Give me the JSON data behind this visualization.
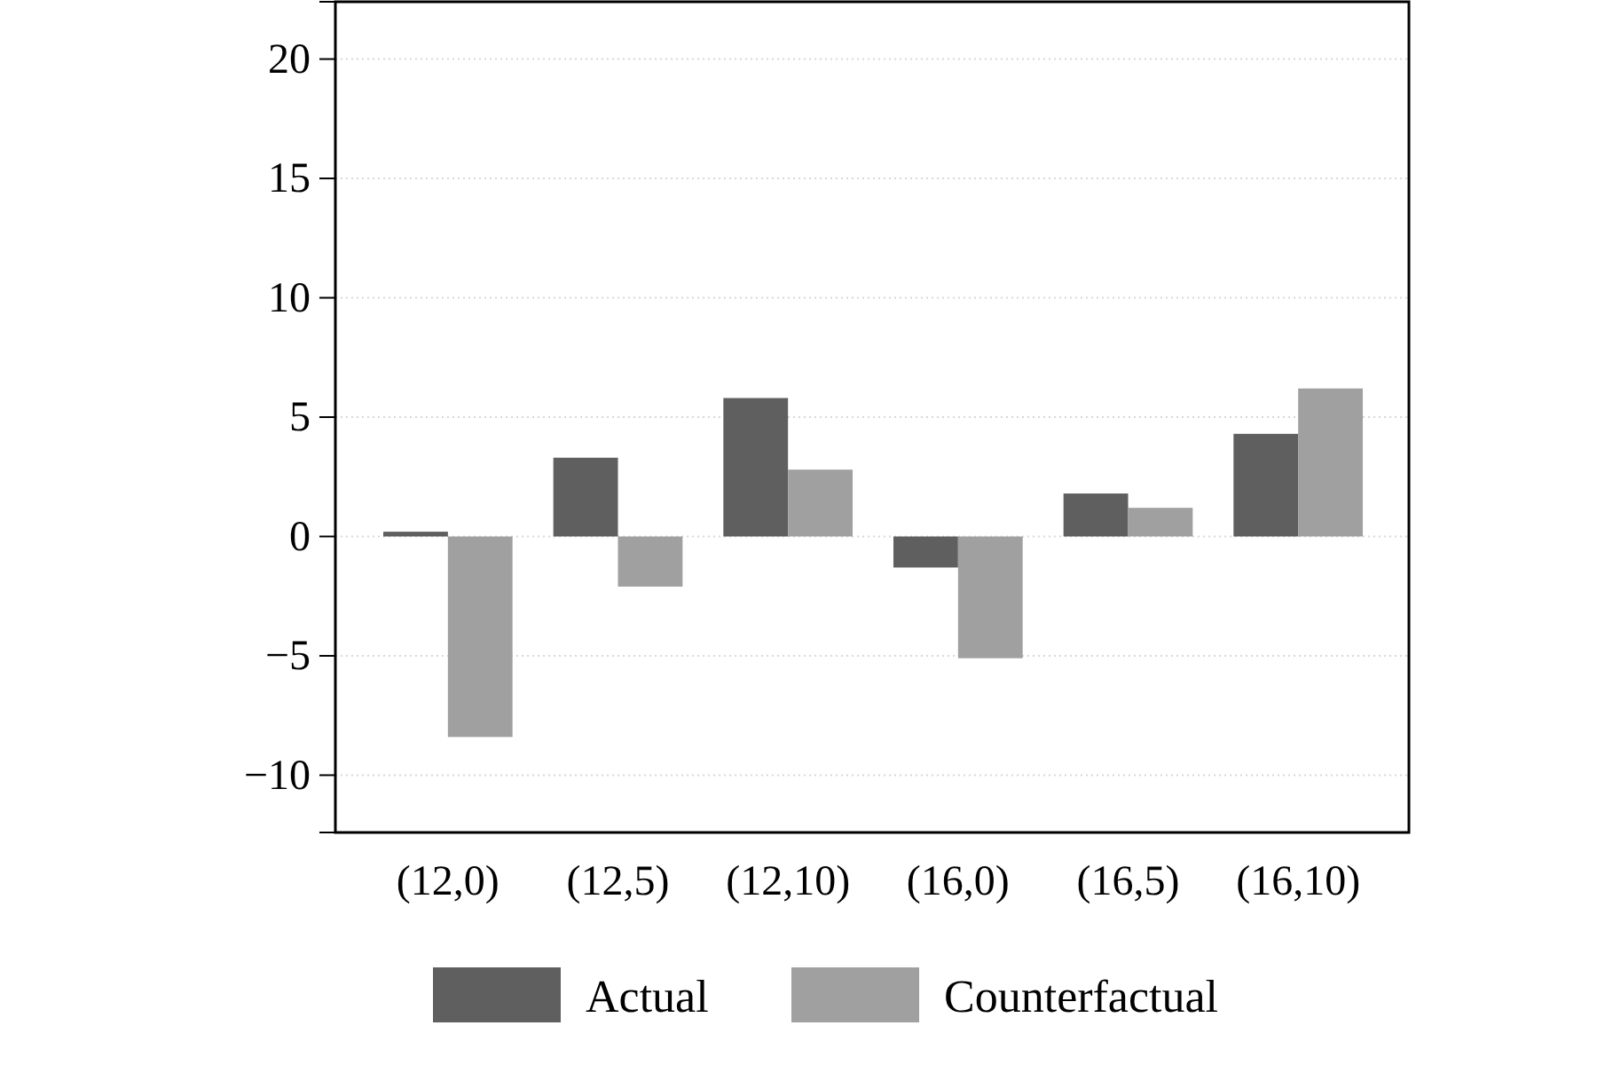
{
  "chart_data": {
    "type": "bar",
    "categories": [
      "(12,0)",
      "(12,5)",
      "(12,10)",
      "(16,0)",
      "(16,5)",
      "(16,10)"
    ],
    "series": [
      {
        "name": "Actual",
        "color": "#5f5f5f",
        "values": [
          0.2,
          3.3,
          5.8,
          -1.3,
          1.8,
          4.3
        ]
      },
      {
        "name": "Counterfactual",
        "color": "#a0a0a0",
        "values": [
          -8.4,
          -2.1,
          2.8,
          -5.1,
          1.2,
          6.2
        ]
      }
    ],
    "ylim": [
      -12.4,
      22.4
    ],
    "yticks": [
      -10,
      -5,
      0,
      5,
      10,
      15,
      20
    ],
    "grid": "y",
    "legend": "bottom"
  }
}
